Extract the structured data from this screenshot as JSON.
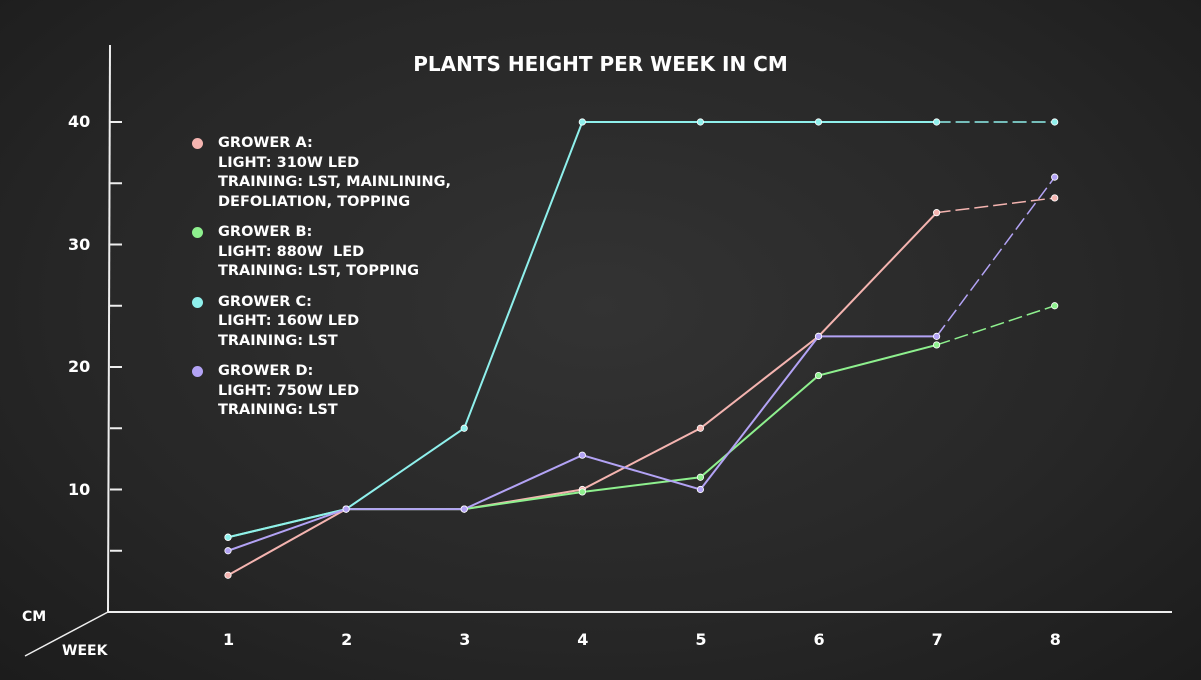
{
  "chart_data": {
    "type": "line",
    "title": "PLANTS HEIGHT PER WEEK IN CM",
    "xlabel": "WEEK",
    "ylabel": "CM",
    "x": [
      1,
      2,
      3,
      4,
      5,
      6,
      7,
      8
    ],
    "y_ticks": [
      10,
      20,
      30,
      40
    ],
    "ylim": [
      0,
      45
    ],
    "grid": false,
    "legend_placement": "top-left",
    "series": [
      {
        "name": "GROWER A:",
        "details": [
          "LIGHT: 310W LED",
          "TRAINING: LST, MAINLINING,",
          "DEFOLIATION, TOPPING"
        ],
        "color": "#f4b4b0",
        "values": [
          3,
          8.4,
          8.4,
          10,
          15,
          22.5,
          32.6,
          33.8
        ]
      },
      {
        "name": "GROWER B:",
        "details": [
          "LIGHT: 880W  LED",
          "TRAINING: LST, TOPPING"
        ],
        "color": "#8ef08e",
        "values": [
          6.1,
          8.4,
          8.4,
          9.8,
          11,
          19.3,
          21.8,
          25
        ]
      },
      {
        "name": "GROWER C:",
        "details": [
          "LIGHT: 160W LED",
          "TRAINING: LST"
        ],
        "color": "#8ff0ec",
        "values": [
          6.1,
          8.4,
          15,
          40,
          40,
          40,
          40,
          40
        ]
      },
      {
        "name": "GROWER D:",
        "details": [
          "LIGHT: 750W LED",
          "TRAINING: LST"
        ],
        "color": "#b3a3f5",
        "values": [
          5,
          8.4,
          8.4,
          12.8,
          10,
          22.5,
          22.5,
          35.5
        ]
      }
    ]
  }
}
